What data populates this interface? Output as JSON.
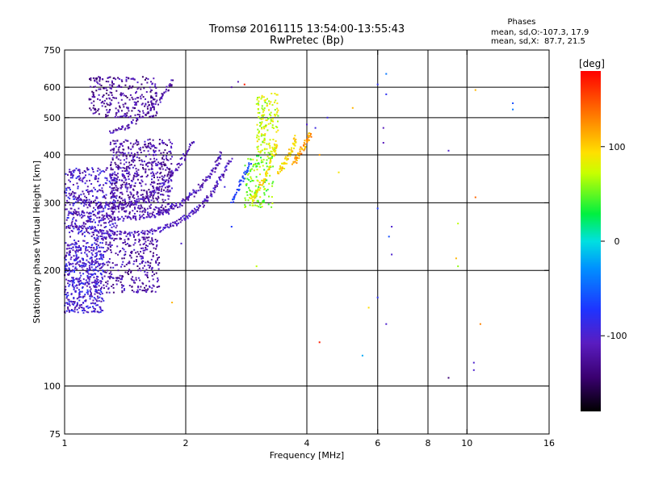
{
  "chart_data": {
    "type": "scatter",
    "title": "Tromsø 20161115 13:54:00-13:55:43",
    "subtitle": "RwPretec (Bp)",
    "xlabel": "Frequency [MHz]",
    "ylabel": "Stationary phase Virtual Height [km]",
    "x_scale": "log2",
    "y_scale": "log",
    "xlim": [
      1,
      16
    ],
    "ylim": [
      75,
      750
    ],
    "x_ticks": [
      {
        "v": 1,
        "label": "1"
      },
      {
        "v": 2,
        "label": "2"
      },
      {
        "v": 4,
        "label": "4"
      },
      {
        "v": 6,
        "label": "6"
      },
      {
        "v": 8,
        "label": "8"
      },
      {
        "v": 10,
        "label": "10"
      },
      {
        "v": 16,
        "label": "16"
      }
    ],
    "x_grid": [
      2,
      4,
      6,
      8,
      10
    ],
    "y_ticks": [
      {
        "v": 75,
        "label": "75"
      },
      {
        "v": 100,
        "label": "100"
      },
      {
        "v": 200,
        "label": "200"
      },
      {
        "v": 300,
        "label": "300"
      },
      {
        "v": 400,
        "label": "400"
      },
      {
        "v": 500,
        "label": "500"
      },
      {
        "v": 600,
        "label": "600"
      },
      {
        "v": 750,
        "label": "750"
      }
    ],
    "y_grid": [
      100,
      200,
      300,
      400,
      500,
      600
    ],
    "grid": true,
    "stats": {
      "heading": "Phases",
      "line1": "mean, sd,O:-107.3, 17.9",
      "line2": "mean, sd,X:  87.7, 21.5"
    },
    "colorbar": {
      "label": "[deg]",
      "range": [
        -180,
        180
      ],
      "ticks": [
        {
          "v": 100,
          "label": "100"
        },
        {
          "v": 0,
          "label": "0"
        },
        {
          "v": -100,
          "label": "-100"
        }
      ]
    },
    "traces": [
      {
        "name": "O-trace F2 low",
        "phase": -110,
        "points": [
          [
            1.02,
            262
          ],
          [
            1.1,
            258
          ],
          [
            1.2,
            254
          ],
          [
            1.3,
            250
          ],
          [
            1.4,
            249
          ],
          [
            1.5,
            249
          ],
          [
            1.6,
            251
          ],
          [
            1.7,
            254
          ],
          [
            1.8,
            260
          ],
          [
            1.9,
            266
          ],
          [
            2.0,
            275
          ],
          [
            2.1,
            284
          ],
          [
            2.2,
            298
          ],
          [
            2.3,
            314
          ],
          [
            2.4,
            336
          ],
          [
            2.5,
            362
          ],
          [
            2.6,
            392
          ]
        ]
      },
      {
        "name": "O-trace F2 mid",
        "phase": -112,
        "points": [
          [
            1.02,
            285
          ],
          [
            1.1,
            281
          ],
          [
            1.2,
            278
          ],
          [
            1.3,
            275
          ],
          [
            1.4,
            273
          ],
          [
            1.5,
            274
          ],
          [
            1.6,
            276
          ],
          [
            1.7,
            280
          ],
          [
            1.8,
            286
          ],
          [
            1.9,
            295
          ],
          [
            2.0,
            305
          ],
          [
            2.1,
            318
          ],
          [
            2.2,
            335
          ],
          [
            2.3,
            355
          ],
          [
            2.4,
            380
          ],
          [
            2.45,
            405
          ]
        ]
      },
      {
        "name": "O-trace F2 upper",
        "phase": -115,
        "points": [
          [
            1.05,
            318
          ],
          [
            1.1,
            305
          ],
          [
            1.2,
            296
          ],
          [
            1.3,
            292
          ],
          [
            1.4,
            294
          ],
          [
            1.5,
            300
          ],
          [
            1.6,
            310
          ],
          [
            1.7,
            324
          ],
          [
            1.8,
            344
          ],
          [
            1.9,
            370
          ],
          [
            2.0,
            400
          ],
          [
            2.1,
            436
          ]
        ]
      },
      {
        "name": "O-trace high arc",
        "phase": -118,
        "points": [
          [
            1.3,
            455
          ],
          [
            1.4,
            470
          ],
          [
            1.5,
            490
          ],
          [
            1.6,
            515
          ],
          [
            1.7,
            548
          ],
          [
            1.8,
            590
          ],
          [
            1.85,
            625
          ]
        ]
      },
      {
        "name": "X-trace 1",
        "phase": 90,
        "points": [
          [
            2.9,
            305
          ],
          [
            3.0,
            318
          ],
          [
            3.1,
            338
          ],
          [
            3.2,
            364
          ],
          [
            3.3,
            398
          ],
          [
            3.35,
            430
          ]
        ]
      },
      {
        "name": "X-trace 2",
        "phase": 95,
        "points": [
          [
            3.4,
            360
          ],
          [
            3.5,
            375
          ],
          [
            3.6,
            395
          ],
          [
            3.7,
            420
          ],
          [
            3.75,
            445
          ]
        ]
      },
      {
        "name": "X-trace 3",
        "phase": 120,
        "points": [
          [
            3.7,
            380
          ],
          [
            3.8,
            395
          ],
          [
            3.9,
            415
          ],
          [
            4.0,
            438
          ],
          [
            4.1,
            455
          ]
        ]
      },
      {
        "name": "Transition trace",
        "phase": -70,
        "points": [
          [
            2.6,
            300
          ],
          [
            2.7,
            325
          ],
          [
            2.8,
            352
          ],
          [
            2.9,
            380
          ]
        ]
      }
    ],
    "clouds": [
      {
        "name": "low blob",
        "phase": -100,
        "x": [
          1.0,
          1.25
        ],
        "y": [
          155,
          240
        ],
        "n": 520
      },
      {
        "name": "mid blob",
        "phase": -120,
        "x": [
          1.25,
          1.72
        ],
        "y": [
          175,
          245
        ],
        "n": 300
      },
      {
        "name": "left fill",
        "phase": -105,
        "x": [
          1.0,
          1.35
        ],
        "y": [
          240,
          370
        ],
        "n": 380
      },
      {
        "name": "center fill",
        "phase": -120,
        "x": [
          1.3,
          1.85
        ],
        "y": [
          280,
          440
        ],
        "n": 620
      },
      {
        "name": "upper blob",
        "phase": -125,
        "x": [
          1.15,
          1.7
        ],
        "y": [
          500,
          640
        ],
        "n": 280
      },
      {
        "name": "X upper cluster",
        "phase": 75,
        "x": [
          3.0,
          3.4
        ],
        "y": [
          400,
          580
        ],
        "n": 150
      },
      {
        "name": "X mid cluster",
        "phase": 55,
        "x": [
          2.8,
          3.3
        ],
        "y": [
          290,
          400
        ],
        "n": 130
      }
    ],
    "scatter": [
      [
        4.3,
        400,
        120
      ],
      [
        4.5,
        500,
        -90
      ],
      [
        4.8,
        360,
        90
      ],
      [
        5.2,
        530,
        110
      ],
      [
        5.5,
        120,
        -20
      ],
      [
        5.7,
        160,
        95
      ],
      [
        6.0,
        170,
        -80
      ],
      [
        6.0,
        290,
        -70
      ],
      [
        6.0,
        610,
        -80
      ],
      [
        6.2,
        470,
        -110
      ],
      [
        6.2,
        430,
        -110
      ],
      [
        6.3,
        650,
        -40
      ],
      [
        6.3,
        575,
        -80
      ],
      [
        6.4,
        245,
        -60
      ],
      [
        6.5,
        260,
        -100
      ],
      [
        6.5,
        220,
        -100
      ],
      [
        6.3,
        145,
        -100
      ],
      [
        9.0,
        105,
        -140
      ],
      [
        9.0,
        410,
        -100
      ],
      [
        9.5,
        265,
        70
      ],
      [
        9.5,
        205,
        60
      ],
      [
        9.4,
        215,
        110
      ],
      [
        10.5,
        590,
        110
      ],
      [
        10.5,
        310,
        140
      ],
      [
        10.8,
        145,
        130
      ],
      [
        10.4,
        115,
        -100
      ],
      [
        10.4,
        110,
        -100
      ],
      [
        13.0,
        545,
        -60
      ],
      [
        13.0,
        525,
        -40
      ],
      [
        4.3,
        130,
        170
      ],
      [
        4.0,
        480,
        -100
      ],
      [
        4.2,
        470,
        -90
      ],
      [
        1.85,
        165,
        110
      ],
      [
        1.95,
        235,
        -100
      ],
      [
        3.0,
        205,
        70
      ],
      [
        2.5,
        330,
        -90
      ],
      [
        2.6,
        260,
        -70
      ],
      [
        2.6,
        600,
        -120
      ],
      [
        2.7,
        620,
        -110
      ],
      [
        2.8,
        610,
        170
      ]
    ]
  }
}
